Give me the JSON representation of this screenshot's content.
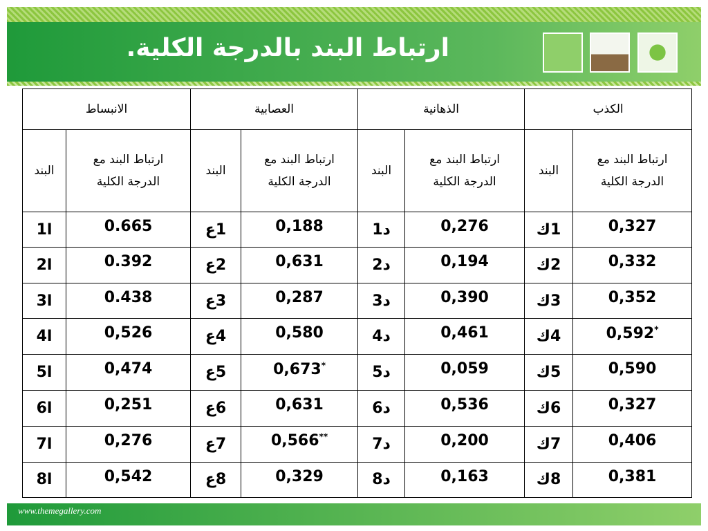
{
  "header": {
    "title": "ارتباط البند بالدرجة الكلية."
  },
  "footer": {
    "url": "www.themegallery.com"
  },
  "table": {
    "groups": [
      "الكذب",
      "الذهانية",
      "العصابية",
      "الانبساط"
    ],
    "subheaders": {
      "corr": "ارتباط البند مع الدرجة الكلية",
      "item": "البند"
    },
    "rows": [
      [
        {
          "value": "0,327",
          "item": "1ك"
        },
        {
          "value": "0,276",
          "item": "د1"
        },
        {
          "value": "0,188",
          "item": "1ع"
        },
        {
          "value": "0.665",
          "item": "ا1"
        }
      ],
      [
        {
          "value": "0,332",
          "item": "2ك"
        },
        {
          "value": "0,194",
          "item": "د2"
        },
        {
          "value": "0,631",
          "item": "2ع"
        },
        {
          "value": "0.392",
          "item": "ا2"
        }
      ],
      [
        {
          "value": "0,352",
          "item": "3ك"
        },
        {
          "value": "0,390",
          "item": "د3"
        },
        {
          "value": "0,287",
          "item": "3ع"
        },
        {
          "value": "0.438",
          "item": "ا3"
        }
      ],
      [
        {
          "value": "0,592",
          "sig": "*",
          "item": "4ك"
        },
        {
          "value": "0,461",
          "item": "د4"
        },
        {
          "value": "0,580",
          "item": "4ع"
        },
        {
          "value": "0,526",
          "item": "ا4"
        }
      ],
      [
        {
          "value": "0,590",
          "item": "5ك"
        },
        {
          "value": "0,059",
          "item": "د5"
        },
        {
          "value": "0,673",
          "sig": "*",
          "item": "5ع"
        },
        {
          "value": "0,474",
          "item": "ا5"
        }
      ],
      [
        {
          "value": "0,327",
          "item": "6ك"
        },
        {
          "value": "0,536",
          "item": "د6"
        },
        {
          "value": "0,631",
          "item": "6ع"
        },
        {
          "value": "0,251",
          "item": "ا6"
        }
      ],
      [
        {
          "value": "0,406",
          "item": "7ك"
        },
        {
          "value": "0,200",
          "item": "د7"
        },
        {
          "value": "0,566",
          "sig": "**",
          "item": "7ع"
        },
        {
          "value": "0,276",
          "item": "ا7"
        }
      ],
      [
        {
          "value": "0,381",
          "item": "8ك"
        },
        {
          "value": "0,163",
          "item": "د8"
        },
        {
          "value": "0,329",
          "item": "8ع"
        },
        {
          "value": "0,542",
          "item": "ا8"
        }
      ]
    ]
  }
}
